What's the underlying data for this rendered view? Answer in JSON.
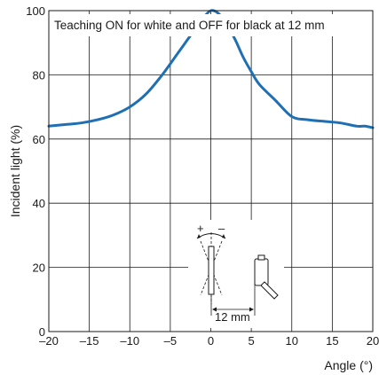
{
  "chart_data": {
    "type": "line",
    "title": "",
    "annotation": "Teaching ON for white and OFF for black at 12 mm",
    "xlabel": "Angle (°)",
    "ylabel": "Incident light (%)",
    "xlim": [
      -20,
      20
    ],
    "ylim": [
      0,
      100
    ],
    "x_ticks": [
      "–20",
      "–15",
      "–10",
      "–5",
      "0",
      "5",
      "10",
      "15",
      "20"
    ],
    "y_ticks": [
      "0",
      "20",
      "40",
      "60",
      "80",
      "100"
    ],
    "grid": true,
    "series": [
      {
        "color": "#1f6fb4",
        "x": [
          -20,
          -18,
          -16,
          -14,
          -12,
          -10,
          -8,
          -6,
          -4,
          -3,
          -2,
          -1,
          0,
          1,
          2,
          3,
          4,
          5,
          6,
          8,
          10,
          12,
          14,
          16,
          18,
          19,
          20
        ],
        "y": [
          64,
          64.5,
          65,
          66,
          67.5,
          70,
          74,
          80,
          87,
          90.5,
          94,
          97.5,
          100,
          99,
          95.5,
          91,
          85.5,
          81,
          77,
          72,
          67,
          66,
          65.5,
          65,
          64,
          64,
          63.5
        ]
      }
    ],
    "inset": {
      "plus_label": "+",
      "minus_label": "–",
      "distance_label": "12 mm"
    }
  }
}
